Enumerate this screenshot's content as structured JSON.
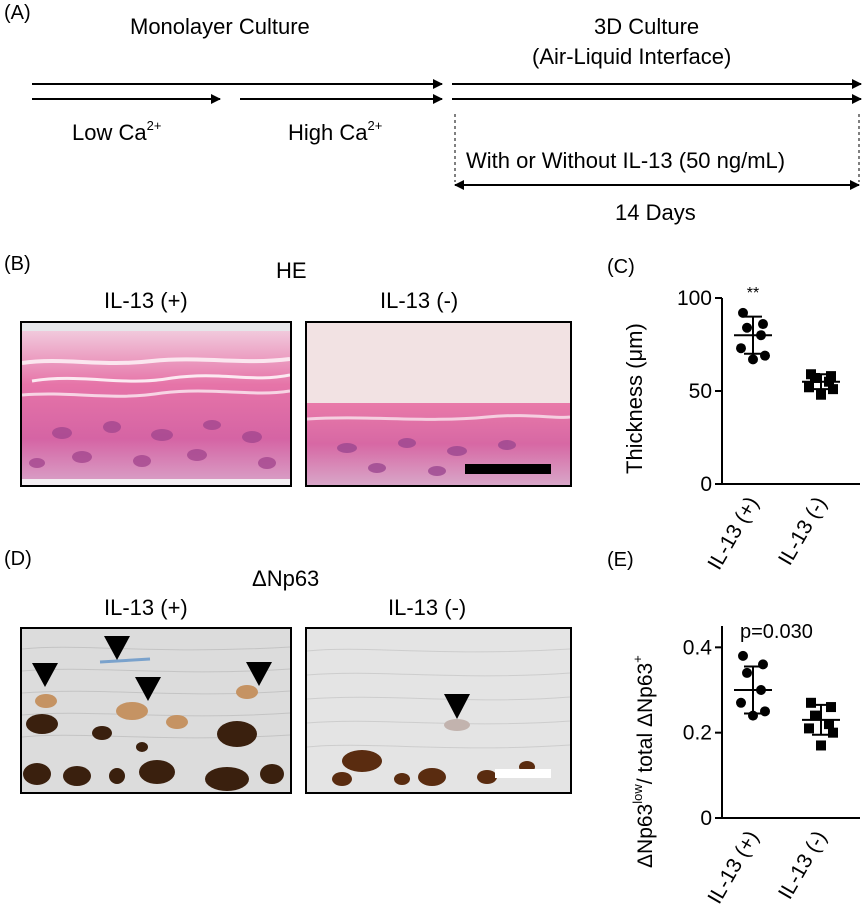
{
  "panelA": {
    "label": "(A)",
    "monolayer_title": "Monolayer Culture",
    "culture3d_title": "3D Culture",
    "culture3d_subtitle": "(Air-Liquid Interface)",
    "low_ca": "Low Ca",
    "low_ca_sup": "2+",
    "high_ca": "High Ca",
    "high_ca_sup": "2+",
    "treatment": "With or Without IL-13  (50 ng/mL)",
    "duration": "14 Days"
  },
  "panelB": {
    "label": "(B)",
    "stain": "HE",
    "left_title": "IL-13 (+)",
    "right_title": "IL-13 (-)"
  },
  "panelD": {
    "label": "(D)",
    "stain": "ΔNp63",
    "left_title": "IL-13 (+)",
    "right_title": "IL-13 (-)"
  },
  "panelC": {
    "label": "(C)",
    "significance": "**"
  },
  "panelE": {
    "label": "(E)",
    "pvalue": "p=0.030"
  },
  "chart_data": [
    {
      "type": "scatter",
      "ylabel": "Thickness (μm)",
      "ylim": [
        0,
        100
      ],
      "yticks": [
        "0",
        "50",
        "100"
      ],
      "categories": [
        "IL-13 (+)",
        "IL-13 (-)"
      ],
      "series": [
        {
          "name": "IL-13 (+)",
          "marker": "circle",
          "points": [
            92,
            86,
            84,
            80,
            73,
            69,
            67
          ],
          "mean": 80,
          "sd": 10
        },
        {
          "name": "IL-13 (-)",
          "marker": "square",
          "points": [
            59,
            58,
            57,
            55,
            52,
            51,
            48
          ],
          "mean": 55,
          "sd": 4
        }
      ],
      "annotation": "**"
    },
    {
      "type": "scatter",
      "ylabel_main": "ΔNp63",
      "ylabel_sup1": "low",
      "ylabel_mid": "/ total ΔNp63",
      "ylabel_sup2": "+",
      "ylim": [
        0,
        0.45
      ],
      "yticks": [
        "0",
        "0.2",
        "0.4"
      ],
      "categories": [
        "IL-13 (+)",
        "IL-13 (-)"
      ],
      "series": [
        {
          "name": "IL-13 (+)",
          "marker": "circle",
          "points": [
            0.38,
            0.36,
            0.34,
            0.3,
            0.27,
            0.25,
            0.24
          ],
          "mean": 0.3,
          "sd": 0.055
        },
        {
          "name": "IL-13 (-)",
          "marker": "square",
          "points": [
            0.27,
            0.26,
            0.24,
            0.22,
            0.21,
            0.2,
            0.17
          ],
          "mean": 0.23,
          "sd": 0.035
        }
      ],
      "annotation": "p=0.030"
    }
  ]
}
